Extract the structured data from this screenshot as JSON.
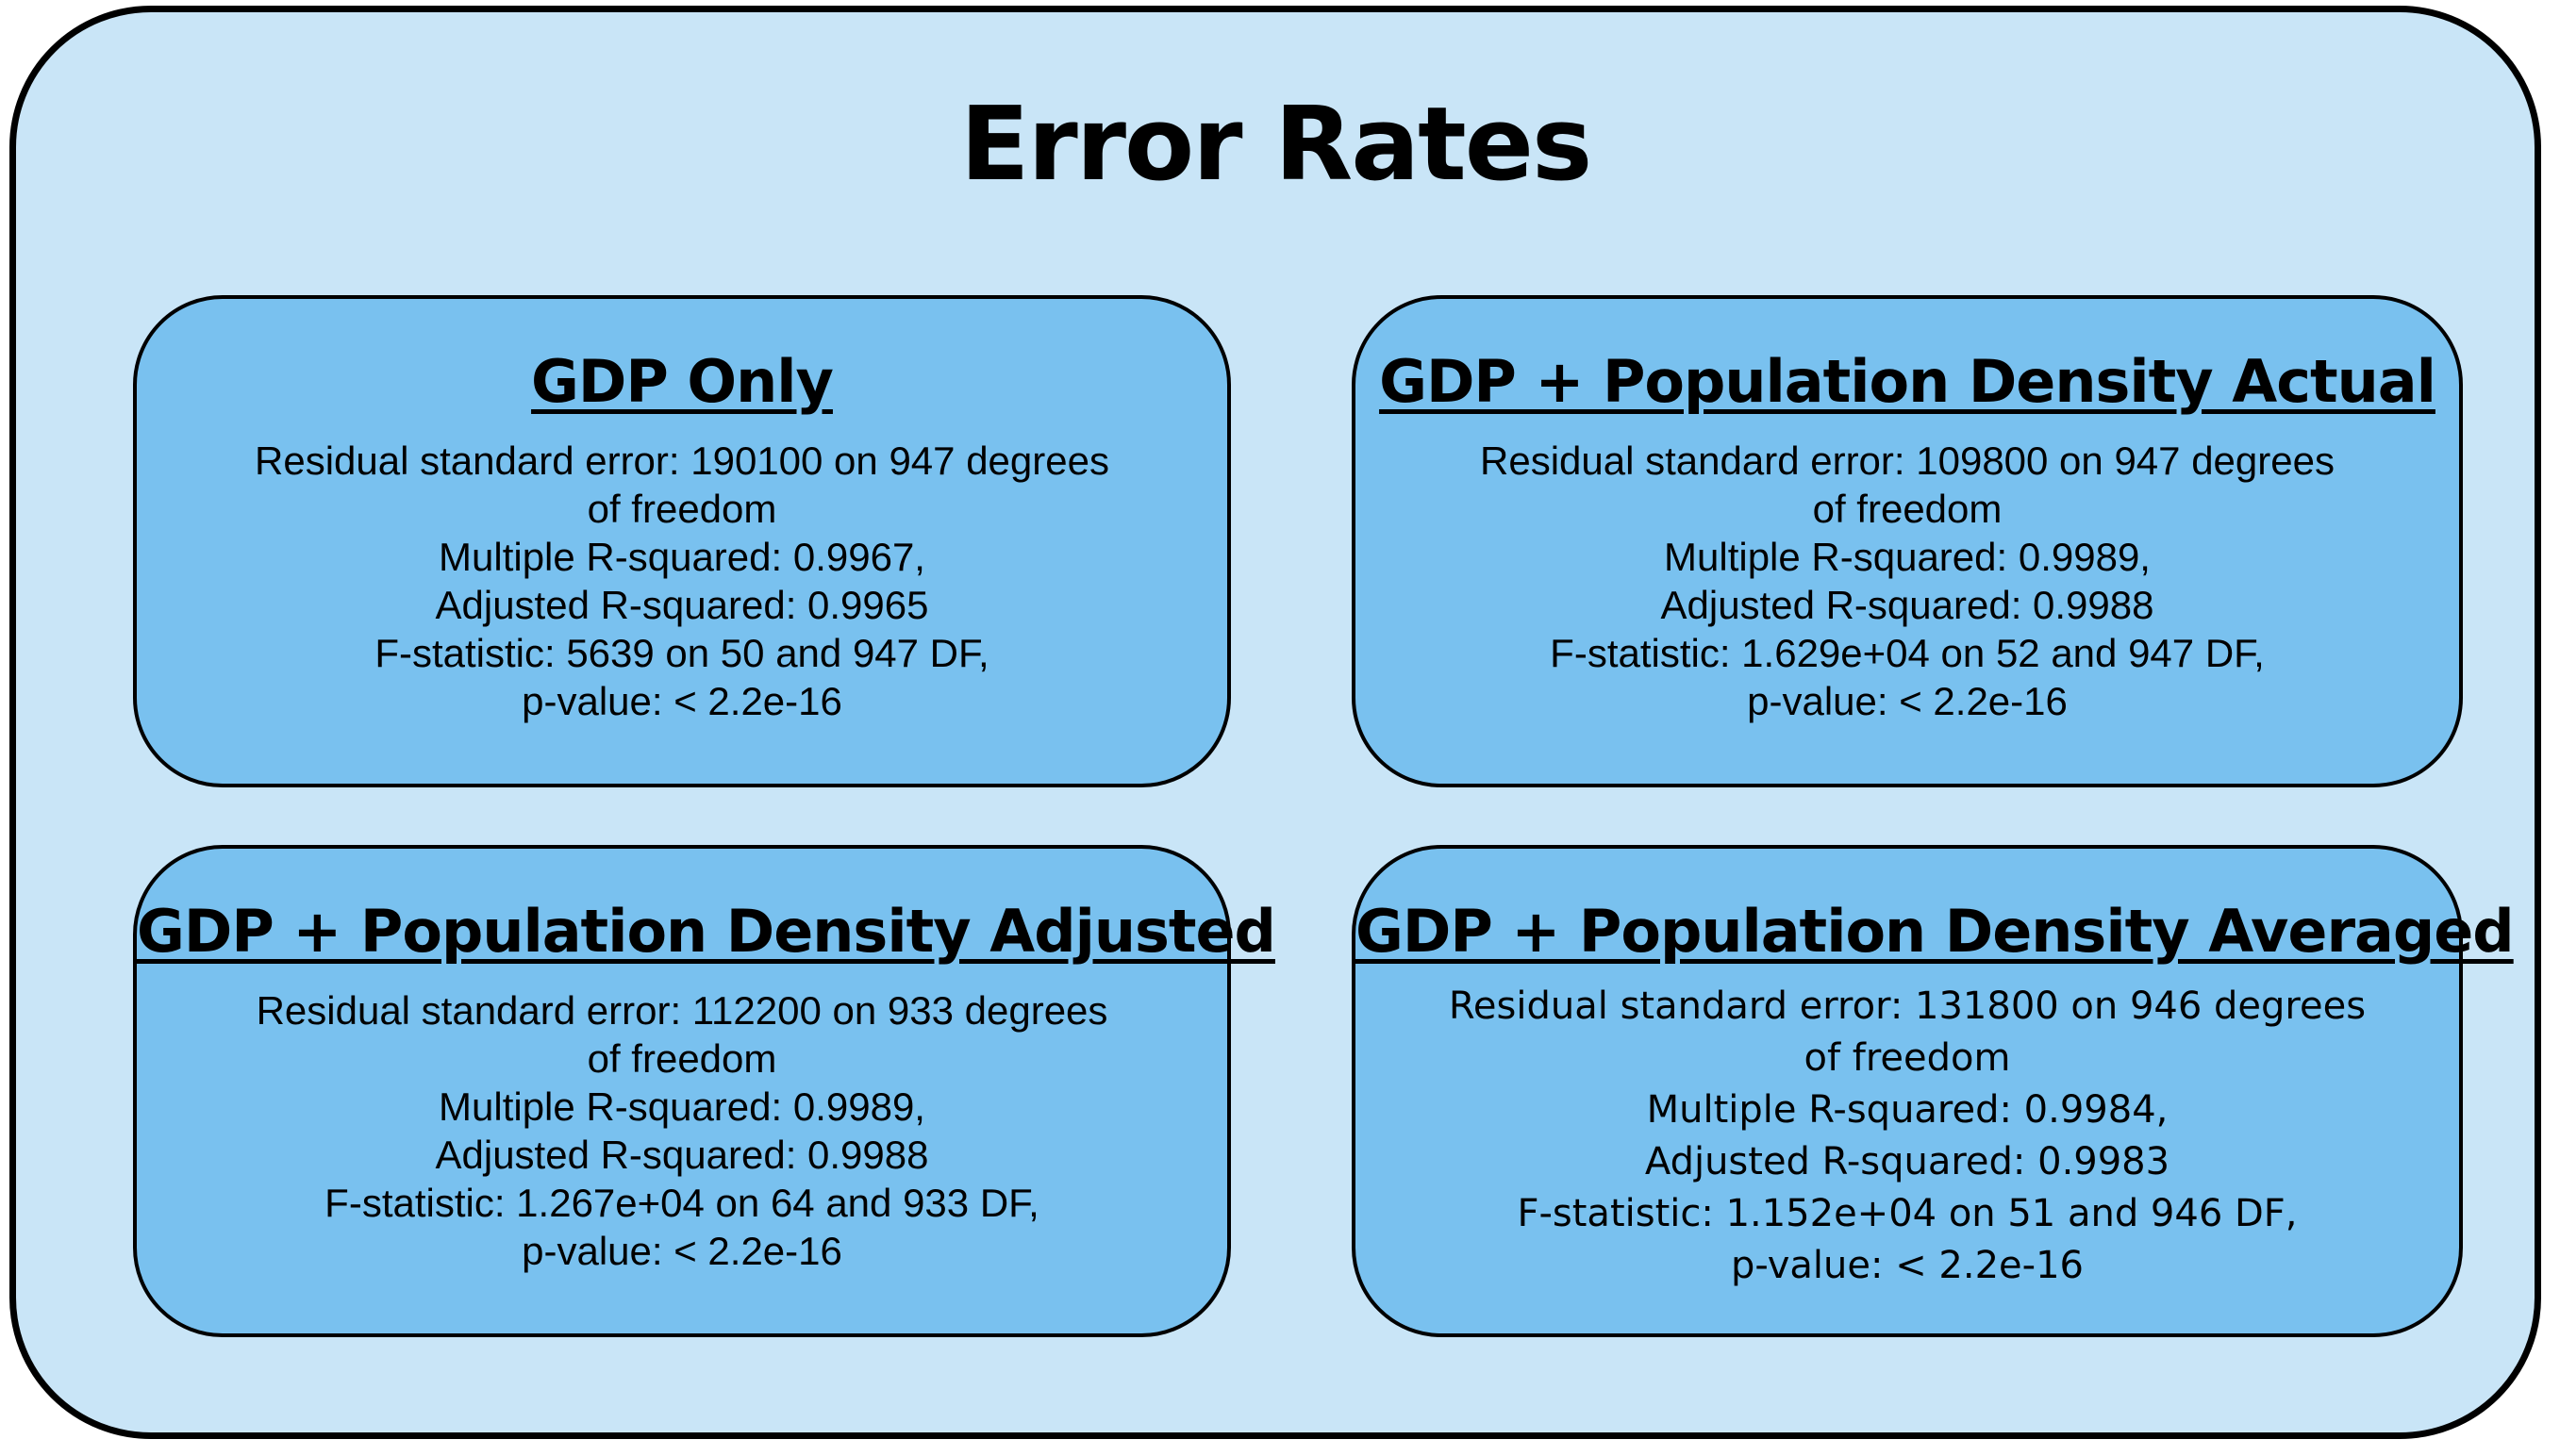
{
  "title": "Error Rates",
  "panels": [
    {
      "title": "GDP Only",
      "lines": [
        "Residual standard error: 190100 on 947 degrees",
        "of freedom",
        "Multiple R-squared:  0.9967,",
        "Adjusted R-squared:  0.9965",
        "F-statistic:  5639 on 50 and 947 DF,",
        "p-value: < 2.2e-16"
      ]
    },
    {
      "title": "GDP + Population Density Actual",
      "lines": [
        "Residual standard error: 109800 on 947 degrees",
        "of freedom",
        "Multiple R-squared:  0.9989,",
        "Adjusted R-squared:  0.9988",
        "F-statistic: 1.629e+04 on 52 and 947 DF,",
        "p-value: < 2.2e-16"
      ]
    },
    {
      "title": "GDP + Population Density Adjusted",
      "lines": [
        "Residual standard error: 112200 on 933 degrees",
        "of freedom",
        "Multiple R-squared:  0.9989,",
        "Adjusted R-squared:  0.9988",
        "F-statistic: 1.267e+04 on 64 and 933 DF,",
        "p-value: < 2.2e-16"
      ]
    },
    {
      "title": "GDP + Population Density Averaged",
      "lines": [
        "Residual standard error: 131800 on 946 degrees",
        "of freedom",
        "Multiple R-squared:  0.9984,",
        "Adjusted R-squared:  0.9983",
        "F-statistic: 1.152e+04 on 51 and 946 DF,",
        "p-value: < 2.2e-16"
      ]
    }
  ],
  "colors": {
    "outer_fill": "#c9e5f7",
    "panel_fill": "#79c1ef",
    "border": "#000000",
    "text": "#000000"
  }
}
